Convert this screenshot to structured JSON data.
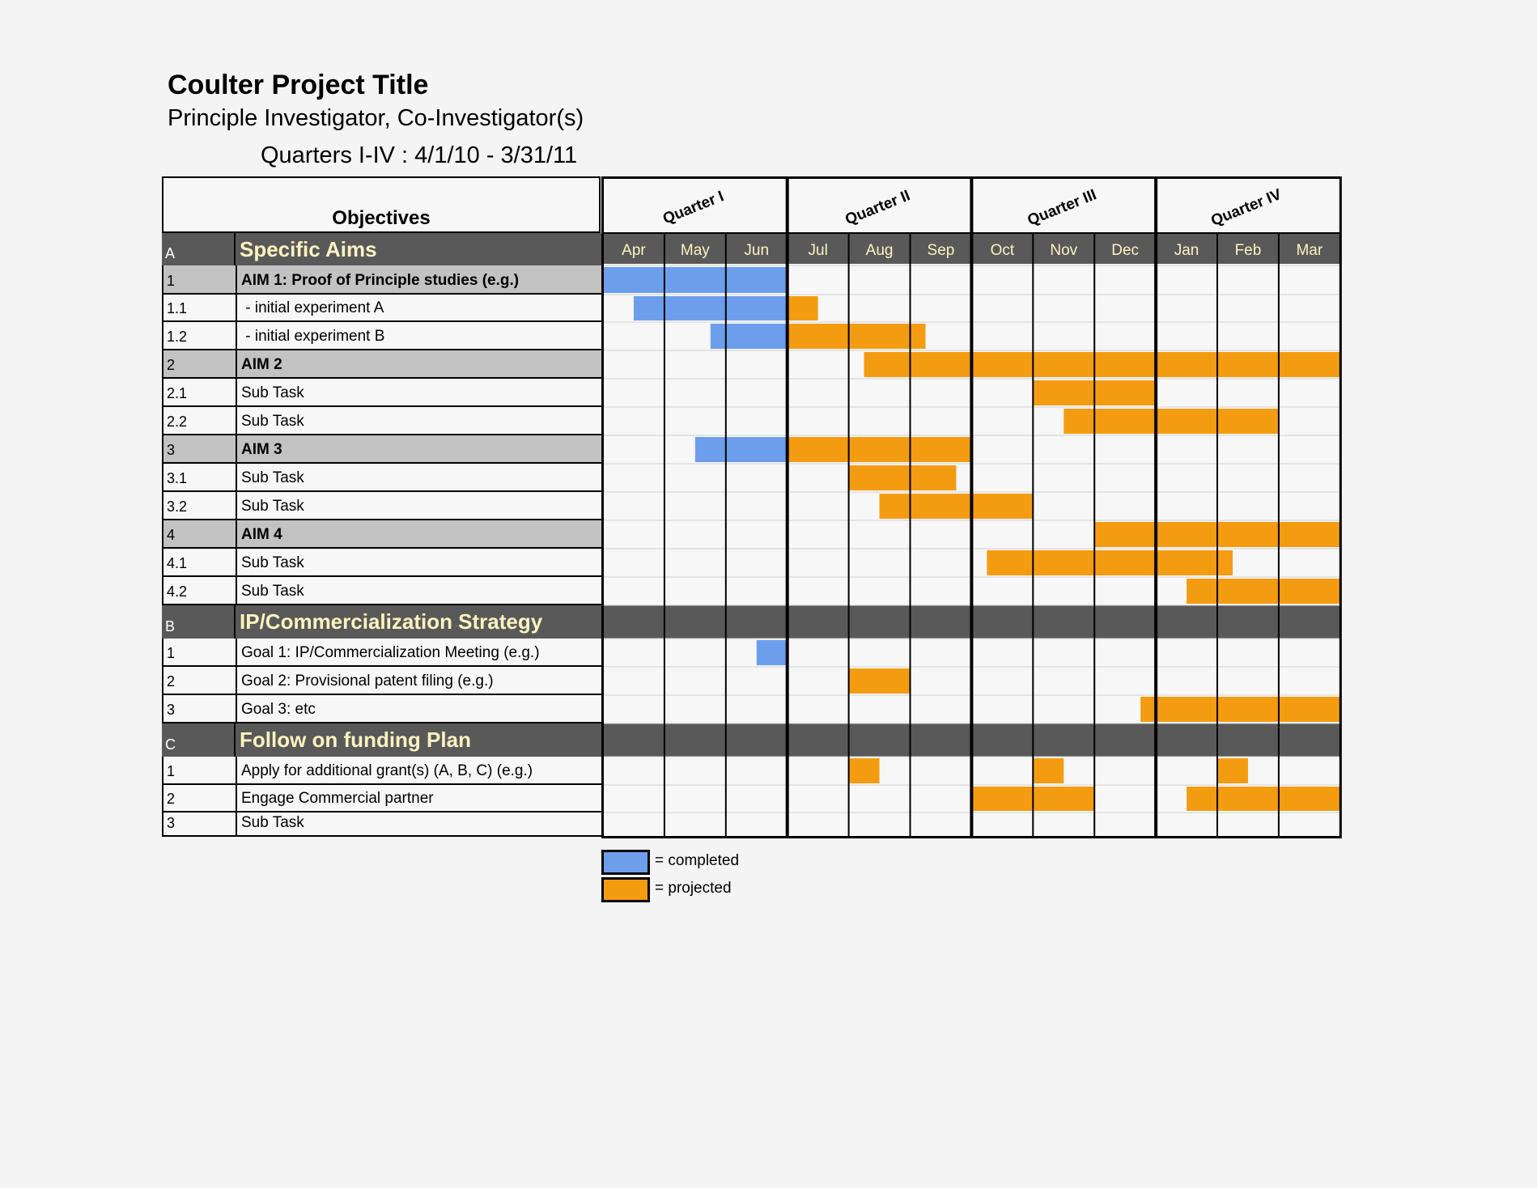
{
  "header": {
    "title": "Coulter Project Title",
    "subtitle": "Principle Investigator, Co-Investigator(s)",
    "quarters_line": "Quarters I-IV : 4/1/10 - 3/31/11"
  },
  "table": {
    "objectives_header": "Objectives",
    "rows": [
      {
        "kind": "section",
        "num": "A",
        "label": "Specific Aims"
      },
      {
        "kind": "aim",
        "num": "1",
        "label": "AIM 1: Proof of Principle studies (e.g.)"
      },
      {
        "kind": "task",
        "num": "1.1",
        "label": " - initial experiment A"
      },
      {
        "kind": "task",
        "num": "1.2",
        "label": " - initial experiment B"
      },
      {
        "kind": "aim",
        "num": "2",
        "label": "AIM 2"
      },
      {
        "kind": "task",
        "num": "2.1",
        "label": "Sub Task"
      },
      {
        "kind": "task",
        "num": "2.2",
        "label": "Sub Task"
      },
      {
        "kind": "aim",
        "num": "3",
        "label": "AIM 3"
      },
      {
        "kind": "task",
        "num": "3.1",
        "label": "Sub Task"
      },
      {
        "kind": "task",
        "num": "3.2",
        "label": "Sub Task"
      },
      {
        "kind": "aim",
        "num": "4",
        "label": "AIM 4"
      },
      {
        "kind": "task",
        "num": "4.1",
        "label": "Sub Task"
      },
      {
        "kind": "task",
        "num": "4.2",
        "label": "Sub Task"
      },
      {
        "kind": "section",
        "num": "B",
        "label": "IP/Commercialization Strategy"
      },
      {
        "kind": "task",
        "num": "1",
        "label": "Goal 1: IP/Commercialization Meeting (e.g.)"
      },
      {
        "kind": "task",
        "num": "2",
        "label": "Goal 2: Provisional patent filing (e.g.)"
      },
      {
        "kind": "task",
        "num": "3",
        "label": "Goal 3: etc"
      },
      {
        "kind": "section",
        "num": "C",
        "label": "Follow on funding Plan"
      },
      {
        "kind": "task",
        "num": "1",
        "label": "Apply for additional grant(s) (A, B, C) (e.g.)"
      },
      {
        "kind": "task",
        "num": "2",
        "label": "Engage Commercial partner"
      },
      {
        "kind": "task",
        "num": "3",
        "label": "Sub Task"
      }
    ]
  },
  "timeline": {
    "quarters": [
      "Quarter I",
      "Quarter II",
      "Quarter III",
      "Quarter IV"
    ],
    "months": [
      "Apr",
      "May",
      "Jun",
      "Jul",
      "Aug",
      "Sep",
      "Oct",
      "Nov",
      "Dec",
      "Jan",
      "Feb",
      "Mar"
    ],
    "bars": [
      [],
      [
        {
          "s": 0,
          "e": 3,
          "st": "completed"
        }
      ],
      [
        {
          "s": 0.5,
          "e": 3,
          "st": "completed"
        },
        {
          "s": 3,
          "e": 3.5,
          "st": "projected"
        }
      ],
      [
        {
          "s": 1.75,
          "e": 3,
          "st": "completed"
        },
        {
          "s": 3,
          "e": 5.25,
          "st": "projected"
        }
      ],
      [
        {
          "s": 4.25,
          "e": 12,
          "st": "projected"
        }
      ],
      [
        {
          "s": 7,
          "e": 9,
          "st": "projected"
        }
      ],
      [
        {
          "s": 7.5,
          "e": 11,
          "st": "projected"
        }
      ],
      [
        {
          "s": 1.5,
          "e": 3,
          "st": "completed"
        },
        {
          "s": 3,
          "e": 6,
          "st": "projected"
        }
      ],
      [
        {
          "s": 4,
          "e": 5.75,
          "st": "projected"
        }
      ],
      [
        {
          "s": 4.5,
          "e": 7,
          "st": "projected"
        }
      ],
      [
        {
          "s": 8,
          "e": 12,
          "st": "projected"
        }
      ],
      [
        {
          "s": 6.25,
          "e": 10.25,
          "st": "projected"
        }
      ],
      [
        {
          "s": 9.5,
          "e": 12,
          "st": "projected"
        }
      ],
      [],
      [
        {
          "s": 2.5,
          "e": 3,
          "st": "completed"
        }
      ],
      [
        {
          "s": 4,
          "e": 5,
          "st": "projected"
        }
      ],
      [
        {
          "s": 8.75,
          "e": 12,
          "st": "projected"
        }
      ],
      [],
      [
        {
          "s": 4,
          "e": 4.5,
          "st": "projected"
        },
        {
          "s": 7,
          "e": 7.5,
          "st": "projected"
        },
        {
          "s": 10,
          "e": 10.5,
          "st": "projected"
        }
      ],
      [
        {
          "s": 6,
          "e": 8,
          "st": "projected"
        },
        {
          "s": 9.5,
          "e": 12,
          "st": "projected"
        }
      ],
      []
    ]
  },
  "legend": {
    "completed_label": "= completed",
    "projected_label": "= projected"
  },
  "colors": {
    "completed": "#6d9eeb",
    "projected": "#f39c12",
    "section_bg": "#595959",
    "aim_bg": "#c2c2c2",
    "month_text": "#fdf3c0",
    "cell_bg": "#f7f7f7"
  }
}
